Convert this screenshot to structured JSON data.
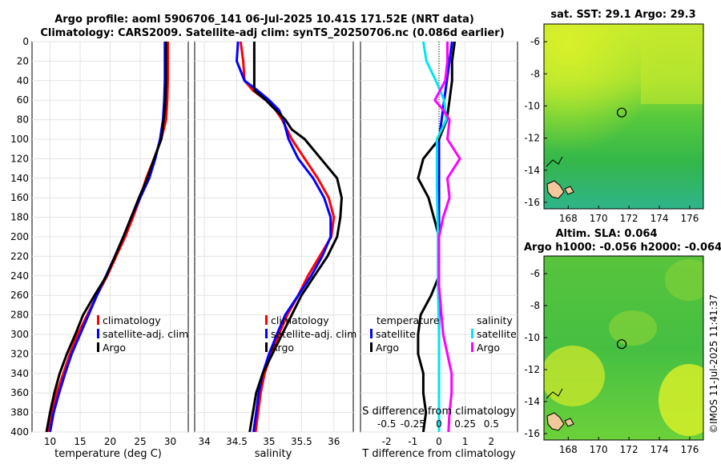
{
  "title": {
    "line1": "Argo profile: aoml 5906706_141 06-Jul-2025 10.41S 171.52E (NRT data)",
    "line2": "Climatology: CARS2009. Satellite-adj clim: synTS_20250706.nc (0.086d earlier)"
  },
  "credit": "©IMOS 11-Jul-2025 11:41:37",
  "colors": {
    "climatology": "#ff0000",
    "satellite": "#0000ff",
    "argo": "#000000",
    "t_sat": "#00e5ee",
    "s_argo": "#ff00ff",
    "s_sat": "#00e5ee"
  },
  "chart_data": [
    {
      "id": "temperature",
      "type": "line",
      "xlabel": "temperature (deg C)",
      "ylabel": "",
      "xlim": [
        7,
        33
      ],
      "ylim": [
        0,
        400
      ],
      "y_reversed": true,
      "xticks": [
        10,
        15,
        20,
        25,
        30
      ],
      "yticks": [
        0,
        20,
        40,
        60,
        80,
        100,
        120,
        140,
        160,
        180,
        200,
        220,
        240,
        260,
        280,
        300,
        320,
        340,
        360,
        380,
        400
      ],
      "grid": true,
      "legend": {
        "position": "bottom-right",
        "entries": [
          "climatology",
          "satellite-adj. clim",
          "Argo"
        ]
      },
      "series": [
        {
          "name": "climatology",
          "color": "#ff0000",
          "points": [
            [
              29.6,
              0
            ],
            [
              29.6,
              20
            ],
            [
              29.6,
              40
            ],
            [
              29.5,
              60
            ],
            [
              29.3,
              80
            ],
            [
              28.5,
              100
            ],
            [
              27.3,
              120
            ],
            [
              26,
              140
            ],
            [
              25,
              160
            ],
            [
              23.8,
              180
            ],
            [
              22.5,
              200
            ],
            [
              21,
              220
            ],
            [
              19.5,
              240
            ],
            [
              17.8,
              260
            ],
            [
              16.2,
              280
            ],
            [
              14.6,
              300
            ],
            [
              13.3,
              320
            ],
            [
              12.2,
              340
            ],
            [
              11.1,
              360
            ],
            [
              10.3,
              380
            ],
            [
              9.6,
              400
            ]
          ]
        },
        {
          "name": "satellite-adj. clim",
          "color": "#0000ff",
          "points": [
            [
              29.1,
              0
            ],
            [
              29.1,
              20
            ],
            [
              29.1,
              40
            ],
            [
              29.0,
              60
            ],
            [
              28.8,
              80
            ],
            [
              28.3,
              100
            ],
            [
              27.5,
              120
            ],
            [
              26.5,
              140
            ],
            [
              25,
              160
            ],
            [
              23.5,
              180
            ],
            [
              22.2,
              200
            ],
            [
              20.8,
              220
            ],
            [
              19.3,
              240
            ],
            [
              17.8,
              260
            ],
            [
              16.4,
              280
            ],
            [
              15,
              300
            ],
            [
              13.6,
              320
            ],
            [
              12.5,
              340
            ],
            [
              11.5,
              360
            ],
            [
              10.6,
              380
            ],
            [
              10,
              400
            ]
          ]
        },
        {
          "name": "Argo",
          "color": "#000000",
          "points": [
            [
              29.3,
              0
            ],
            [
              29.3,
              20
            ],
            [
              29.3,
              40
            ],
            [
              29.2,
              60
            ],
            [
              29.1,
              70
            ],
            [
              28.5,
              100
            ],
            [
              27.3,
              120
            ],
            [
              26.2,
              140
            ],
            [
              24.8,
              160
            ],
            [
              23.5,
              180
            ],
            [
              22.2,
              200
            ],
            [
              20.8,
              220
            ],
            [
              19.4,
              240
            ],
            [
              17.4,
              260
            ],
            [
              15.5,
              280
            ],
            [
              14.2,
              300
            ],
            [
              12.8,
              320
            ],
            [
              11.6,
              340
            ],
            [
              10.7,
              360
            ],
            [
              10.0,
              380
            ],
            [
              9.4,
              400
            ]
          ]
        }
      ]
    },
    {
      "id": "salinity",
      "type": "line",
      "xlabel": "salinity",
      "xlim": [
        33.85,
        36.3
      ],
      "ylim": [
        0,
        400
      ],
      "y_reversed": true,
      "xticks": [
        34,
        34.5,
        35,
        35.5,
        36
      ],
      "grid": true,
      "legend": {
        "position": "bottom-right",
        "entries": [
          "climatology",
          "satellite-adj. clim",
          "Argo"
        ]
      },
      "series": [
        {
          "name": "climatology",
          "color": "#ff0000",
          "points": [
            [
              34.56,
              0
            ],
            [
              34.6,
              20
            ],
            [
              34.62,
              40
            ],
            [
              34.75,
              50
            ],
            [
              34.95,
              60
            ],
            [
              35.1,
              70
            ],
            [
              35.2,
              80
            ],
            [
              35.35,
              100
            ],
            [
              35.55,
              120
            ],
            [
              35.75,
              140
            ],
            [
              35.92,
              160
            ],
            [
              36.0,
              180
            ],
            [
              35.96,
              200
            ],
            [
              35.78,
              220
            ],
            [
              35.6,
              240
            ],
            [
              35.45,
              260
            ],
            [
              35.28,
              280
            ],
            [
              35.15,
              300
            ],
            [
              35.03,
              320
            ],
            [
              34.93,
              340
            ],
            [
              34.87,
              360
            ],
            [
              34.83,
              380
            ],
            [
              34.79,
              400
            ]
          ]
        },
        {
          "name": "satellite-adj. clim",
          "color": "#0000ff",
          "points": [
            [
              34.52,
              0
            ],
            [
              34.5,
              20
            ],
            [
              34.62,
              40
            ],
            [
              34.82,
              50
            ],
            [
              35.0,
              60
            ],
            [
              35.15,
              70
            ],
            [
              35.22,
              80
            ],
            [
              35.3,
              100
            ],
            [
              35.45,
              120
            ],
            [
              35.68,
              140
            ],
            [
              35.85,
              160
            ],
            [
              35.95,
              180
            ],
            [
              35.95,
              200
            ],
            [
              35.82,
              220
            ],
            [
              35.65,
              240
            ],
            [
              35.45,
              260
            ],
            [
              35.25,
              280
            ],
            [
              35.12,
              300
            ],
            [
              35.0,
              320
            ],
            [
              34.9,
              340
            ],
            [
              34.84,
              360
            ],
            [
              34.8,
              380
            ],
            [
              34.76,
              400
            ]
          ]
        },
        {
          "name": "Argo",
          "color": "#000000",
          "points": [
            [
              34.77,
              0
            ],
            [
              34.77,
              20
            ],
            [
              34.77,
              40
            ],
            [
              34.77,
              50
            ],
            [
              34.95,
              60
            ],
            [
              35.1,
              70
            ],
            [
              35.25,
              80
            ],
            [
              35.35,
              90
            ],
            [
              35.55,
              100
            ],
            [
              35.8,
              120
            ],
            [
              36.05,
              140
            ],
            [
              36.12,
              160
            ],
            [
              36.1,
              180
            ],
            [
              36.05,
              200
            ],
            [
              35.9,
              220
            ],
            [
              35.7,
              240
            ],
            [
              35.5,
              260
            ],
            [
              35.35,
              280
            ],
            [
              35.2,
              300
            ],
            [
              35.05,
              320
            ],
            [
              34.9,
              340
            ],
            [
              34.8,
              360
            ],
            [
              34.75,
              380
            ],
            [
              34.7,
              400
            ]
          ]
        }
      ]
    },
    {
      "id": "differences",
      "type": "line",
      "xlabel": "T difference from climatology",
      "xlabel_top": "S difference from climatology",
      "xlim": [
        -3,
        3
      ],
      "ylim": [
        0,
        400
      ],
      "y_reversed": true,
      "xticks": [
        -2,
        -1,
        0,
        1,
        2
      ],
      "s_xlim": [
        -0.75,
        0.75
      ],
      "s_xticks": [
        "-0.5",
        "-0.25",
        "0",
        "0.25",
        "0.5"
      ],
      "s_xtick_values": [
        -0.5,
        -0.25,
        0,
        0.25,
        0.5
      ],
      "grid": true,
      "legend": {
        "position": "bottom",
        "t_header": "temperature",
        "s_header": "salinity",
        "entries": [
          "satellite",
          "Argo"
        ]
      },
      "series": [
        {
          "name": "temperature satellite",
          "color": "#0000ff",
          "points": [
            [
              0.5,
              0
            ],
            [
              0.4,
              20
            ],
            [
              0.3,
              40
            ],
            [
              0.2,
              60
            ],
            [
              0.1,
              80
            ],
            [
              0,
              100
            ],
            [
              0,
              150
            ],
            [
              0,
              200
            ],
            [
              0,
              250
            ],
            [
              0,
              300
            ],
            [
              0,
              350
            ],
            [
              0,
              400
            ]
          ]
        },
        {
          "name": "temperature Argo",
          "color": "#000000",
          "points": [
            [
              0.6,
              0
            ],
            [
              0.5,
              20
            ],
            [
              0.5,
              40
            ],
            [
              0.4,
              60
            ],
            [
              0.3,
              80
            ],
            [
              0,
              100
            ],
            [
              -0.3,
              110
            ],
            [
              -0.6,
              120
            ],
            [
              -0.8,
              140
            ],
            [
              -0.4,
              160
            ],
            [
              -0.2,
              180
            ],
            [
              0,
              200
            ],
            [
              0,
              240
            ],
            [
              -0.3,
              260
            ],
            [
              -0.7,
              280
            ],
            [
              -0.8,
              300
            ],
            [
              -0.8,
              320
            ],
            [
              -0.6,
              340
            ],
            [
              -0.6,
              360
            ],
            [
              -0.5,
              380
            ],
            [
              -0.6,
              400
            ]
          ]
        },
        {
          "name": "salinity satellite",
          "color": "#00e5ee",
          "points": [
            [
              -0.15,
              0
            ],
            [
              -0.12,
              20
            ],
            [
              -0.03,
              40
            ],
            [
              0.05,
              60
            ],
            [
              0.07,
              80
            ],
            [
              -0.02,
              100
            ],
            [
              -0.02,
              150
            ],
            [
              -0.01,
              200
            ],
            [
              -0.01,
              250
            ],
            [
              0.0,
              300
            ],
            [
              0.0,
              350
            ],
            [
              0.0,
              400
            ]
          ]
        },
        {
          "name": "salinity Argo",
          "color": "#ff00ff",
          "points": [
            [
              0.08,
              0
            ],
            [
              0.08,
              20
            ],
            [
              0.06,
              40
            ],
            [
              -0.04,
              60
            ],
            [
              0.04,
              70
            ],
            [
              0.1,
              80
            ],
            [
              0.08,
              100
            ],
            [
              0.2,
              120
            ],
            [
              0.08,
              140
            ],
            [
              0.1,
              160
            ],
            [
              0.04,
              180
            ],
            [
              0.0,
              200
            ],
            [
              0.0,
              250
            ],
            [
              0.04,
              300
            ],
            [
              0.12,
              340
            ],
            [
              0.12,
              360
            ],
            [
              0.1,
              380
            ],
            [
              0.09,
              400
            ]
          ]
        }
      ]
    },
    {
      "id": "sst-map",
      "type": "heatmap",
      "title": "sat. SST: 29.1 Argo: 29.3",
      "xlim": [
        166.4,
        176.9
      ],
      "ylim": [
        -16.4,
        -4.9
      ],
      "xticks": [
        168,
        170,
        172,
        174,
        176
      ],
      "yticks": [
        -6,
        -8,
        -10,
        -12,
        -14,
        -16
      ],
      "marker": {
        "lon": 171.52,
        "lat": -10.41
      }
    },
    {
      "id": "sla-map",
      "type": "heatmap",
      "title": "Altim. SLA: 0.064",
      "subtitle": "Argo h1000: -0.056 h2000: -0.064",
      "xlim": [
        166.4,
        176.9
      ],
      "ylim": [
        -16.4,
        -4.9
      ],
      "xticks": [
        168,
        170,
        172,
        174,
        176
      ],
      "yticks": [
        -6,
        -8,
        -10,
        -12,
        -14,
        -16
      ],
      "marker": {
        "lon": 171.52,
        "lat": -10.41
      }
    }
  ]
}
